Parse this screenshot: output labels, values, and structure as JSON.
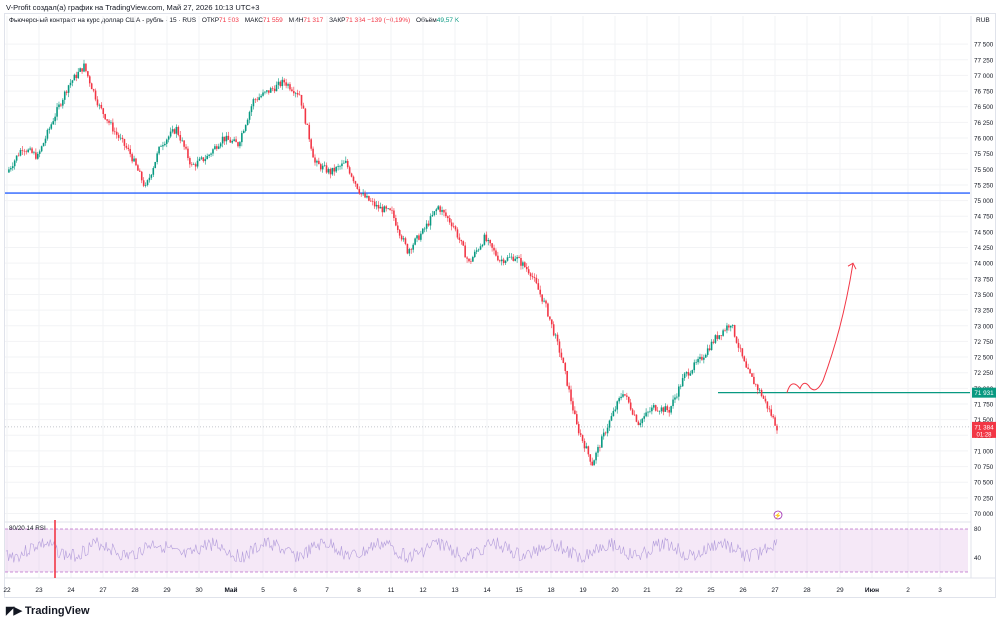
{
  "caption": "V-Profit создал(а) график на TradingView.com, Май 27, 2026 10:13 UTC+3",
  "legend": {
    "instrument": "Фьючерсный контракт на курс доллар США - рубль · 15 · RUS",
    "open_label": "ОТКР",
    "open_value": "71 503",
    "high_label": "МАКС",
    "high_value": "71 559",
    "low_label": "МИН",
    "low_value": "71 317",
    "close_label": "ЗАКР",
    "close_value": "71 384",
    "change": "−139 (−0,19%)",
    "volume_label": "Объём",
    "volume_value": "49,57 K"
  },
  "currency": "RUB",
  "footer_brand": "TradingView",
  "colors": {
    "up": "#089981",
    "down": "#f23645",
    "hline": "#2962ff",
    "support": "#089981",
    "projection": "#f23645",
    "rsi_band": "#e1bee7"
  },
  "chart_data": {
    "type": "candlestick",
    "ylim": [
      70000,
      77750
    ],
    "y_ticks": [
      "77 500",
      "77 250",
      "77 000",
      "76 750",
      "76 500",
      "76 250",
      "76 000",
      "75 750",
      "75 500",
      "75 250",
      "75 000",
      "74 750",
      "74 500",
      "74 250",
      "74 000",
      "73 750",
      "73 500",
      "73 250",
      "73 000",
      "72 750",
      "72 500",
      "72 250",
      "72 000",
      "71 750",
      "71 500",
      "71 250",
      "71 000",
      "70 750",
      "70 500",
      "70 250",
      "70 000"
    ],
    "x_ticks": [
      "22",
      "23",
      "24",
      "27",
      "28",
      "29",
      "30",
      "Май",
      "5",
      "6",
      "7",
      "8",
      "11",
      "12",
      "13",
      "14",
      "15",
      "18",
      "19",
      "20",
      "21",
      "22",
      "25",
      "26",
      "27",
      "28",
      "29",
      "Июн",
      "2",
      "3"
    ],
    "x_ticks_bold": [
      "Май",
      "Июн"
    ],
    "price_path": [
      [
        "22",
        75450
      ],
      [
        "22",
        75850
      ],
      [
        "23",
        75700
      ],
      [
        "23",
        76300
      ],
      [
        "24",
        76850
      ],
      [
        "24",
        77150
      ],
      [
        "24",
        76500
      ],
      [
        "27",
        76100
      ],
      [
        "27",
        75750
      ],
      [
        "28",
        75200
      ],
      [
        "28",
        75900
      ],
      [
        "29",
        76150
      ],
      [
        "29",
        75550
      ],
      [
        "30",
        75700
      ],
      [
        "30",
        76000
      ],
      [
        "Май",
        75900
      ],
      [
        "Май",
        76600
      ],
      [
        "5",
        76750
      ],
      [
        "5",
        76900
      ],
      [
        "6",
        76700
      ],
      [
        "6",
        75600
      ],
      [
        "7",
        75450
      ],
      [
        "7",
        75600
      ],
      [
        "8",
        75100
      ],
      [
        "8",
        74900
      ],
      [
        "11",
        74800
      ],
      [
        "11",
        74200
      ],
      [
        "12",
        74500
      ],
      [
        "12",
        74900
      ],
      [
        "13",
        74600
      ],
      [
        "13",
        74000
      ],
      [
        "14",
        74400
      ],
      [
        "14",
        74050
      ],
      [
        "15",
        74100
      ],
      [
        "15",
        73850
      ],
      [
        "18",
        73300
      ],
      [
        "18",
        72500
      ],
      [
        "19",
        71400
      ],
      [
        "19",
        70800
      ],
      [
        "20",
        71400
      ],
      [
        "20",
        71950
      ],
      [
        "21",
        71450
      ],
      [
        "21",
        71700
      ],
      [
        "22",
        71650
      ],
      [
        "22",
        72200
      ],
      [
        "25",
        72450
      ],
      [
        "25",
        72800
      ],
      [
        "26",
        73050
      ],
      [
        "26",
        72300
      ],
      [
        "27",
        71900
      ],
      [
        "27",
        71384
      ]
    ],
    "horizontal_lines": [
      {
        "y": 75120,
        "color": "blue"
      },
      {
        "y": 71931,
        "color": "green",
        "label": "71 931"
      }
    ],
    "last_price": {
      "label": "71 384",
      "countdown": "01:28"
    },
    "projection_path": "up from about 71 931 to about 74 000",
    "indicator": {
      "label": "80/20 14 RSI",
      "levels": [
        "80",
        "40"
      ]
    }
  }
}
